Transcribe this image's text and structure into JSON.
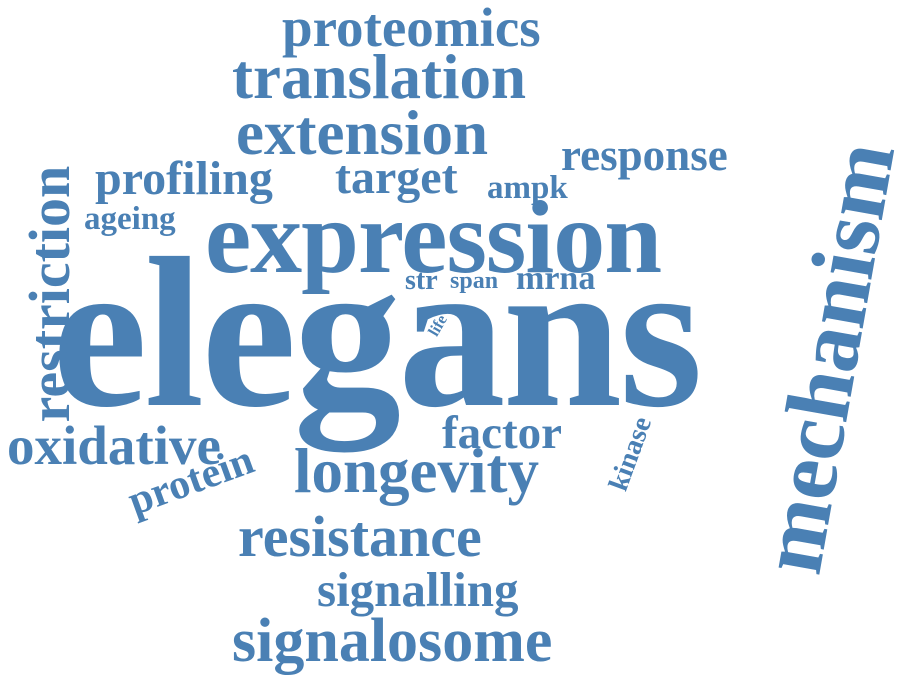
{
  "word_cloud": {
    "color": "#4a80b4",
    "words": {
      "elegans": "elegans",
      "expression": "expression",
      "proteomics": "proteomics",
      "translation": "translation",
      "extension": "extension",
      "response": "response",
      "profiling": "profiling",
      "target": "target",
      "ampk": "ampk",
      "ageing": "ageing",
      "str": "str",
      "span": "span",
      "mrna": "mrna",
      "restriction": "restriction",
      "oxidative": "oxidative",
      "factor": "factor",
      "longevity": "longevity",
      "protein": "protein",
      "kinase": "kinase",
      "resistance": "resistance",
      "signalling": "signalling",
      "signalosome": "signalosome",
      "mechanism": "mechanism",
      "life": "life"
    }
  }
}
